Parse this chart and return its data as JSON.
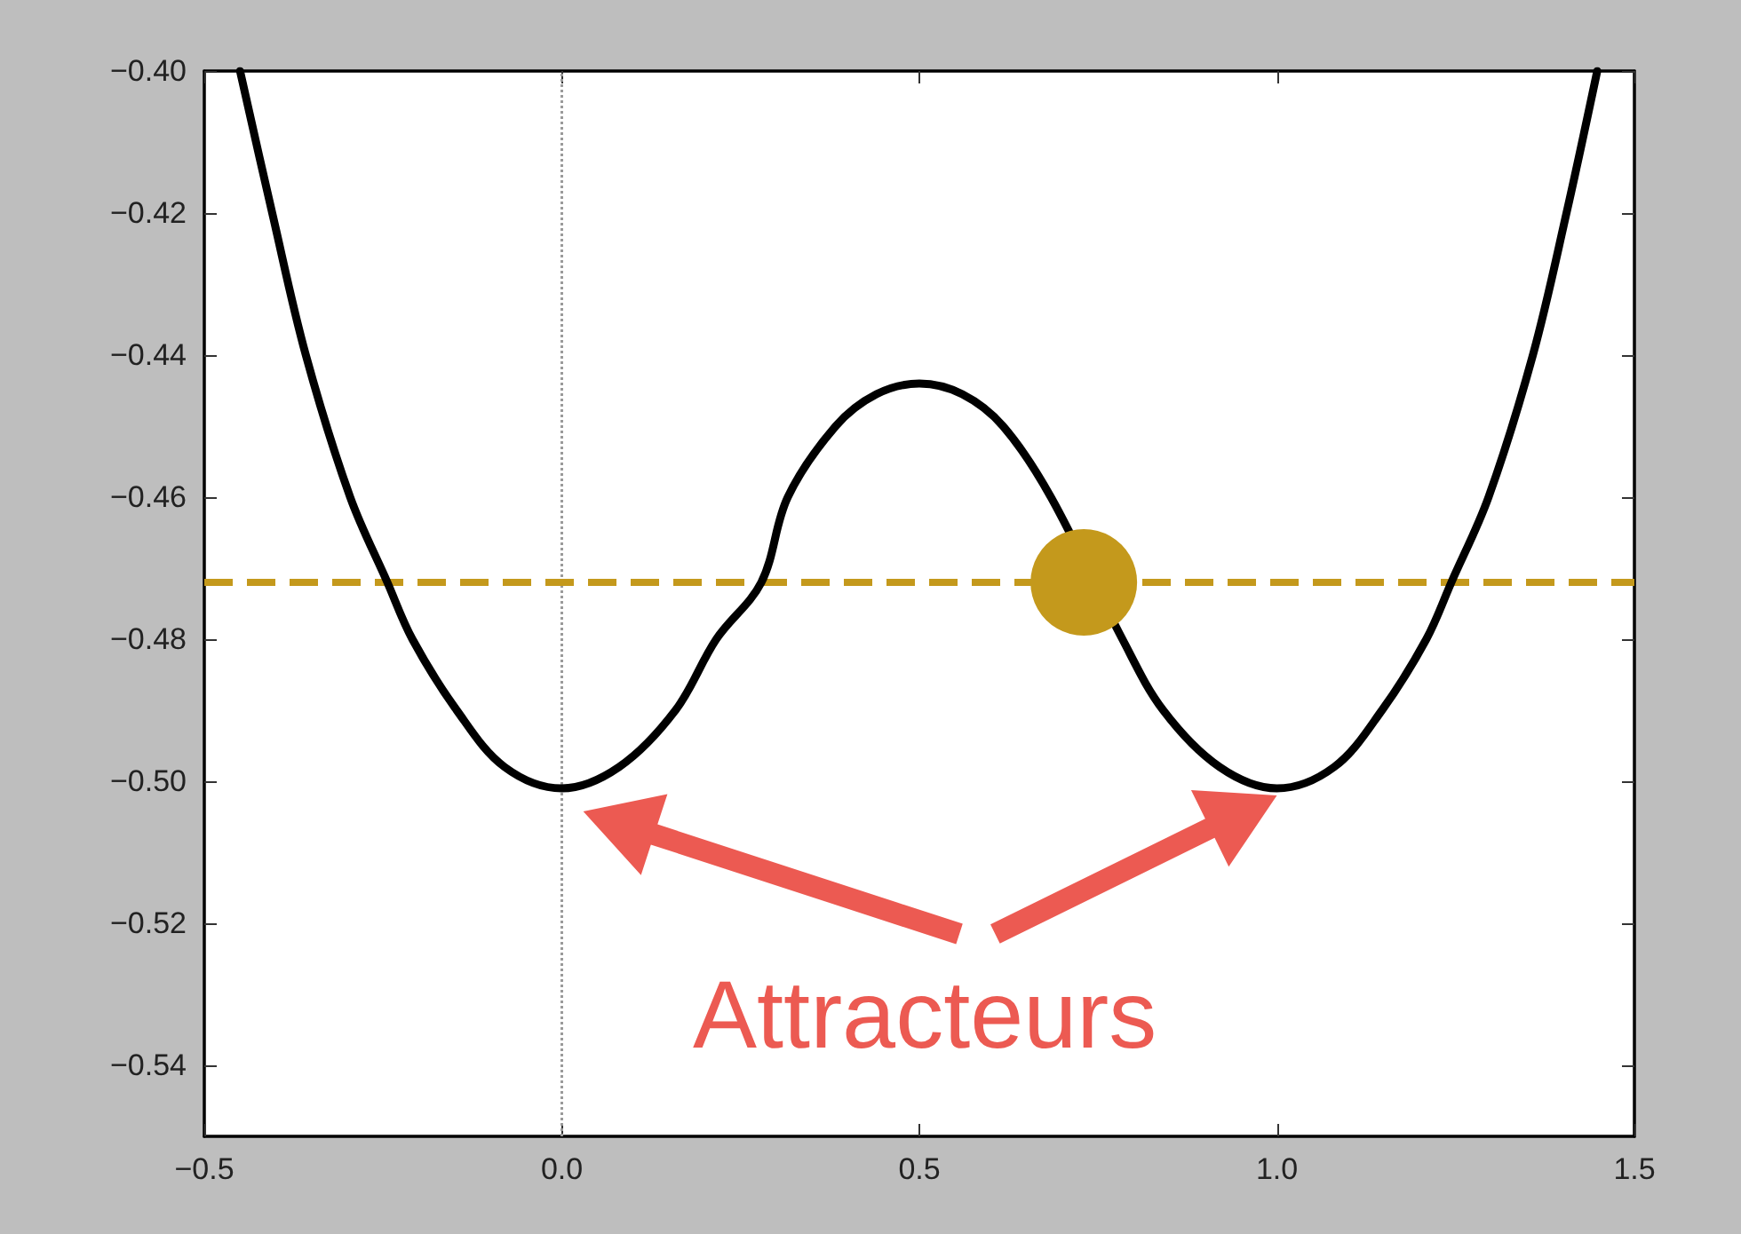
{
  "chart_data": {
    "type": "line",
    "annotations": [
      "Attracteurs"
    ],
    "xlim": [
      -0.5,
      1.5
    ],
    "xticks": [
      {
        "value": -0.5,
        "label": "−0.5"
      },
      {
        "value": 0,
        "label": "0.0"
      },
      {
        "value": 0.5,
        "label": "0.5"
      },
      {
        "value": 1,
        "label": "1.0"
      },
      {
        "value": 1.5,
        "label": "1.5"
      }
    ],
    "ylim": [
      -0.55,
      -0.4
    ],
    "yticks": [
      {
        "value": -0.54,
        "label": "−0.54"
      },
      {
        "value": -0.52,
        "label": "−0.52"
      },
      {
        "value": -0.5,
        "label": "−0.50"
      },
      {
        "value": -0.48,
        "label": "−0.48"
      },
      {
        "value": -0.46,
        "label": "−0.46"
      },
      {
        "value": -0.44,
        "label": "−0.44"
      },
      {
        "value": -0.42,
        "label": "−0.42"
      },
      {
        "value": -0.4,
        "label": "−0.40"
      }
    ],
    "grid": false,
    "line_style": "solid",
    "series": [
      {
        "color": "#000000",
        "x": [
          -0.45,
          -0.405,
          -0.358,
          -0.296,
          -0.244,
          -0.209,
          -0.147,
          -0.08,
          0,
          0.08,
          0.159,
          0.216,
          0.279,
          0.316,
          0.383,
          0.44,
          0.5,
          0.56,
          0.617,
          0.684,
          0.784,
          0.841,
          0.92,
          1.0,
          1.08,
          1.147,
          1.209,
          1.244,
          1.296,
          1.358,
          1.405,
          1.448
        ],
        "values": [
          -0.4,
          -0.42,
          -0.44,
          -0.46,
          -0.472,
          -0.48,
          -0.49,
          -0.498,
          -0.501,
          -0.498,
          -0.49,
          -0.48,
          -0.472,
          -0.46,
          -0.45,
          -0.4455,
          -0.444,
          -0.4455,
          -0.45,
          -0.46,
          -0.48,
          -0.49,
          -0.498,
          -0.501,
          -0.498,
          -0.49,
          -0.48,
          -0.472,
          -0.46,
          -0.44,
          -0.42,
          -0.4
        ]
      },
      {
        "type": "scatter",
        "color": "#c4991c",
        "x": [
          0.73
        ],
        "values": [
          -0.472
        ]
      }
    ],
    "ref_lines": [
      {
        "axis": "x",
        "value": 0,
        "color": "#9a9a9a",
        "line_style": "dotted"
      },
      {
        "axis": "y",
        "value": -0.472,
        "color": "#c4991c",
        "line_style": "dashed"
      }
    ]
  }
}
